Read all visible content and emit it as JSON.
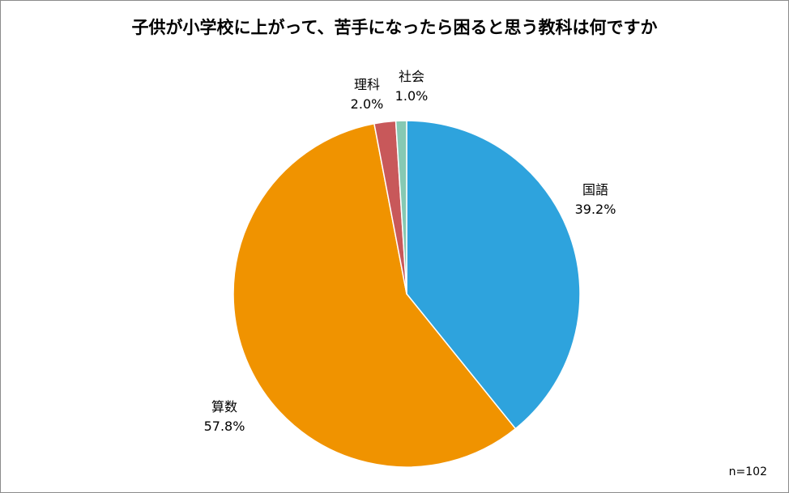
{
  "chart_data": {
    "type": "pie",
    "title": "子供が小学校に上がって、苦手になったら困ると思う教科は何ですか",
    "slices": [
      {
        "label": "国語",
        "value": 39.2,
        "value_label": "39.2%",
        "color": "#2ea3dd"
      },
      {
        "label": "算数",
        "value": 57.8,
        "value_label": "57.8%",
        "color": "#f09300"
      },
      {
        "label": "理科",
        "value": 2.0,
        "value_label": "2.0%",
        "color": "#c8585a"
      },
      {
        "label": "社会",
        "value": 1.0,
        "value_label": "1.0%",
        "color": "#86c9b3"
      }
    ],
    "note": "n=102",
    "legend": "none"
  }
}
